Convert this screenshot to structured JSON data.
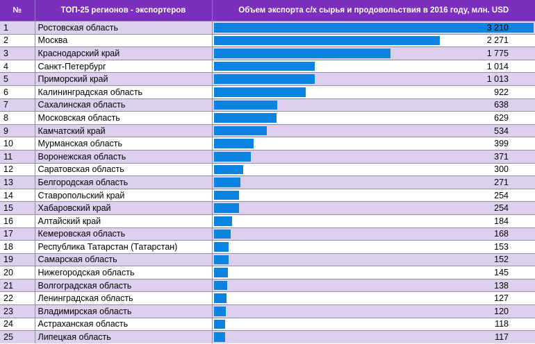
{
  "header": {
    "num": "№",
    "region": "ТОП-25 регионов - экспортеров",
    "value": "Объем экспорта с/х сырья и продовольствия в 2016 году, млн. USD"
  },
  "colors": {
    "header": "#7a2fbd",
    "bar": "#0a84e0",
    "row_alt": "#dcd0ee"
  },
  "chart_data": {
    "type": "bar",
    "orientation": "horizontal",
    "title": "",
    "xlim": [
      0,
      3210
    ],
    "categories": [
      "Ростовская область",
      "Москва",
      "Краснодарский край",
      "Санкт-Петербург",
      "Приморский край",
      "Калининградская область",
      "Сахалинская область",
      "Московская область",
      "Камчатский край",
      "Мурманская область",
      "Воронежская область",
      "Саратовская область",
      "Белгородская область",
      "Ставропольский край",
      "Хабаровский край",
      "Алтайский край",
      "Кемеровская область",
      "Республика Татарстан (Татарстан)",
      "Самарская область",
      "Нижегородская область",
      "Волгоградская область",
      "Ленинградская область",
      "Владимирская область",
      "Астраханская область",
      "Липецкая область"
    ],
    "values": [
      3210,
      2271,
      1775,
      1014,
      1013,
      922,
      638,
      629,
      534,
      399,
      371,
      300,
      271,
      254,
      254,
      184,
      168,
      153,
      152,
      145,
      138,
      127,
      120,
      118,
      117
    ],
    "value_labels": [
      "3 210",
      "2 271",
      "1 775",
      "1 014",
      "1 013",
      "922",
      "638",
      "629",
      "534",
      "399",
      "371",
      "300",
      "271",
      "254",
      "254",
      "184",
      "168",
      "153",
      "152",
      "145",
      "138",
      "127",
      "120",
      "118",
      "117"
    ]
  }
}
